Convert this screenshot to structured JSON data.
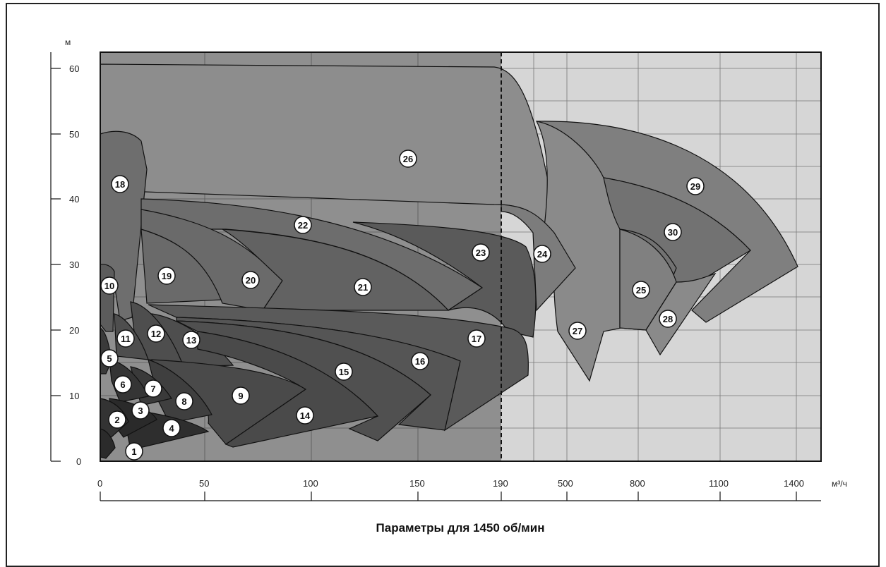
{
  "chart_data": {
    "type": "area",
    "title": "Параметры для 1450 об/мин",
    "xlabel": "м³/ч",
    "ylabel": "м",
    "x_ticks_linear": [
      "0",
      "50",
      "100",
      "150",
      "190"
    ],
    "x_ticks_extended": [
      "500",
      "800",
      "1100",
      "1400"
    ],
    "y_ticks": [
      "0",
      "10",
      "20",
      "30",
      "40",
      "50",
      "60"
    ],
    "ylim": [
      0,
      62
    ],
    "grid": true,
    "split_line_at": "190",
    "colors": {
      "left_background": "#8f8f8f",
      "right_background": "#d6d6d6",
      "light_region": "#8a8a8a",
      "medium_region": "#6e6e6e",
      "dark_region": "#4a4a4a"
    },
    "series": [
      {
        "name": "1",
        "q_max": 12,
        "h_max": 5
      },
      {
        "name": "2",
        "q_max": 25,
        "h_max": 10
      },
      {
        "name": "3",
        "q_max": 38,
        "h_max": 12
      },
      {
        "name": "4",
        "q_max": 52,
        "h_max": 8
      },
      {
        "name": "5",
        "q_max": 22,
        "h_max": 16
      },
      {
        "name": "6",
        "q_max": 33,
        "h_max": 14
      },
      {
        "name": "7",
        "q_max": 45,
        "h_max": 12
      },
      {
        "name": "8",
        "q_max": 55,
        "h_max": 12
      },
      {
        "name": "9",
        "q_max": 98,
        "h_max": 15
      },
      {
        "name": "10",
        "q_max": 7,
        "h_max": 30
      },
      {
        "name": "11",
        "q_max": 18,
        "h_max": 22
      },
      {
        "name": "12",
        "q_max": 30,
        "h_max": 24
      },
      {
        "name": "13",
        "q_max": 65,
        "h_max": 23
      },
      {
        "name": "14",
        "q_max": 130,
        "h_max": 20
      },
      {
        "name": "15",
        "q_max": 155,
        "h_max": 21
      },
      {
        "name": "16",
        "q_max": 175,
        "h_max": 22
      },
      {
        "name": "17",
        "q_max": 197,
        "h_max": 23
      },
      {
        "name": "18",
        "q_max": 22,
        "h_max": 51
      },
      {
        "name": "19",
        "q_max": 60,
        "h_max": 36
      },
      {
        "name": "20",
        "q_max": 88,
        "h_max": 40
      },
      {
        "name": "21",
        "q_max": 170,
        "h_max": 35
      },
      {
        "name": "22",
        "q_max": 180,
        "h_max": 40
      },
      {
        "name": "23",
        "q_max": 205,
        "h_max": 36
      },
      {
        "name": "24",
        "q_max": 420,
        "h_max": 39
      },
      {
        "name": "25",
        "q_max": 800,
        "h_max": 33
      },
      {
        "name": "26",
        "q_max": 400,
        "h_max": 61
      },
      {
        "name": "27",
        "q_max": 700,
        "h_max": 52
      },
      {
        "name": "28",
        "q_max": 1100,
        "h_max": 28
      },
      {
        "name": "29",
        "q_max": 1400,
        "h_max": 52
      },
      {
        "name": "30",
        "q_max": 1250,
        "h_max": 43
      }
    ]
  }
}
